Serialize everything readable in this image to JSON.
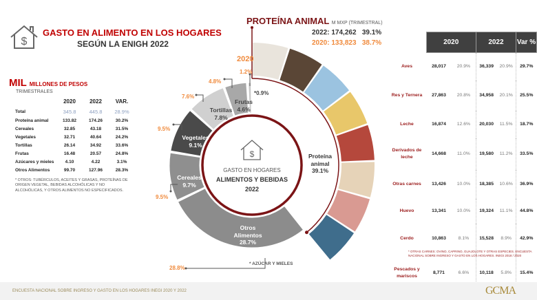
{
  "header": {
    "title_line1": "GASTO EN ALIMENTO EN LOS HOGARES",
    "title_line2": "SEGÚN LA ENIGH 2022"
  },
  "left_panel": {
    "unit_big": "MIL",
    "unit_small": "MILLONES DE PESOS",
    "subtitle": "TRIMESTRALES",
    "columns": [
      "2020",
      "2022",
      "VAR."
    ],
    "rows": [
      {
        "label": "Total",
        "v2020": "345.8",
        "v2022": "445.8",
        "var": "28.9%"
      },
      {
        "label": "Proteína animal",
        "v2020": "133.82",
        "v2022": "174.26",
        "var": "30.2%"
      },
      {
        "label": "Cereales",
        "v2020": "32.85",
        "v2022": "43.18",
        "var": "31.5%"
      },
      {
        "label": "Vegetales",
        "v2020": "32.71",
        "v2022": "40.64",
        "var": "24.2%"
      },
      {
        "label": "Tortillas",
        "v2020": "26.14",
        "v2022": "34.92",
        "var": "33.6%"
      },
      {
        "label": "Frutas",
        "v2020": "16.48",
        "v2022": "20.57",
        "var": "24.8%"
      },
      {
        "label": "Azúcares y mieles",
        "v2020": "4.10",
        "v2022": "4.22",
        "var": "3.1%"
      },
      {
        "label": "Otros Alimentos",
        "v2020": "99.70",
        "v2022": "127.96",
        "var": "28.3%"
      }
    ],
    "note": "* OTROS: TUBÉRCULOS, ACEITES Y GRASAS,  PROTEÍNAS DE ORIGEN VEGETAL, BEBIDAS ALCOHÓLICAS Y NO ALCOHÓLICAS, Y OTROS ALIMENTOS NO ESPECIFICADOS."
  },
  "protein_header": {
    "title": "PROTEÍNA ANIMAL",
    "unit": "M MXP (TRIMESTRAL)",
    "line2022": "2022: 174,262   39.1%",
    "line2020": "2020: 133,823   38.7%"
  },
  "chart_data": {
    "type": "pie",
    "title": "GASTO EN HOGARES ALIMENTOS Y BEBIDAS 2022",
    "center": {
      "line1": "GASTO EN HOGARES",
      "line2": "ALIMENTOS Y BEBIDAS",
      "line3": "2022"
    },
    "year_2020_label": "2020",
    "slices": [
      {
        "name": "Proteína animal",
        "value": 39.1,
        "label": "39.1%",
        "pct2020": "",
        "color": "#ffffff"
      },
      {
        "name": "Otros Alimentos",
        "value": 28.7,
        "label": "28.7%",
        "pct2020": "28.8%",
        "color": "#8c8c8c"
      },
      {
        "name": "Cereales",
        "value": 9.7,
        "label": "9.7%",
        "pct2020": "9.5%",
        "color": "#8f8f8f"
      },
      {
        "name": "Vegetales",
        "value": 9.1,
        "label": "9.1%",
        "pct2020": "9.5%",
        "color": "#4a4a4a"
      },
      {
        "name": "Tortillas",
        "value": 7.8,
        "label": "7.8%",
        "pct2020": "7.6%",
        "color": "#d0d0d0"
      },
      {
        "name": "Frutas",
        "value": 4.6,
        "label": "4.6%",
        "pct2020": "4.8%",
        "color": "#a8a8a8"
      },
      {
        "name": "Azúcar y mieles",
        "value": 0.9,
        "label": "*0.9%",
        "pct2020": "1.2%",
        "color": "#c8c8c8"
      }
    ],
    "footnote": "* AZÚCAR Y MIELES",
    "colors": {
      "accent": "#7b1416",
      "orange": "#f08a3c"
    }
  },
  "protein_table": {
    "headers": [
      "2020",
      "2022",
      "Var %"
    ],
    "rows": [
      {
        "label": "Aves",
        "v2020": "28,017",
        "p2020": "20.9%",
        "v2022": "36,339",
        "p2022": "20.9%",
        "var": "29.7%"
      },
      {
        "label": "Res y Ternera",
        "v2020": "27,863",
        "p2020": "20.8%",
        "v2022": "34,958",
        "p2022": "20.1%",
        "var": "25.5%"
      },
      {
        "label": "Leche",
        "v2020": "16,874",
        "p2020": "12.6%",
        "v2022": "20,030",
        "p2022": "11.5%",
        "var": "18.7%"
      },
      {
        "label": "Derivados de leche",
        "v2020": "14,668",
        "p2020": "11.0%",
        "v2022": "19,580",
        "p2022": "11.2%",
        "var": "33.5%"
      },
      {
        "label": "Otras carnes",
        "v2020": "13,426",
        "p2020": "10.0%",
        "v2022": "18,385",
        "p2022": "10.6%",
        "var": "36.9%"
      },
      {
        "label": "Huevo",
        "v2020": "13,341",
        "p2020": "10.0%",
        "v2022": "19,324",
        "p2022": "11.1%",
        "var": "44.8%"
      },
      {
        "label": "Cerdo",
        "v2020": "10,863",
        "p2020": "8.1%",
        "v2022": "15,528",
        "p2022": "8.9%",
        "var": "42.9%"
      },
      {
        "label": "Pescados y mariscos",
        "v2020": "8,771",
        "p2020": "6.6%",
        "v2022": "10,118",
        "p2022": "5.8%",
        "var": "15.4%"
      }
    ],
    "note": "* OTRAS CARNES: OVINO, CAPRINO, GUAJOLOTE Y OTRAS ESPECIES. ENCUESTA NACIONAL SOBRE INGRESO Y GASTO EN LOS HOGARES. INEGI 2018 / 2020"
  },
  "footer": {
    "source": "ENCUESTA NACIONAL SOBRE INGRESO Y GASTO EN LOS HOGARES INEGI 2020 Y 2022",
    "logo": "GCMA"
  }
}
